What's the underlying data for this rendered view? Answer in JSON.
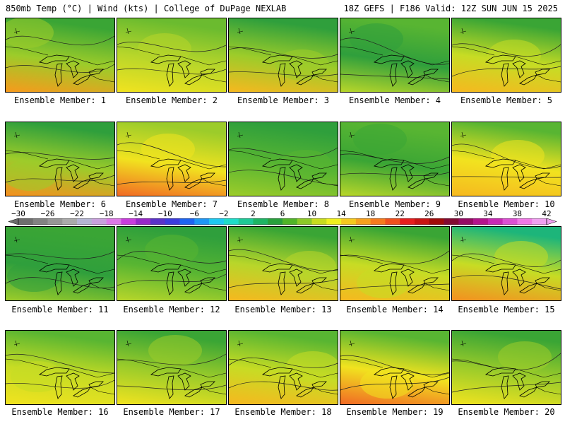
{
  "header": {
    "left": "850mb Temp (°C) | Wind (kts) | College of DuPage NEXLAB",
    "right": "18Z GEFS | F186 Valid: 12Z SUN JUN 15 2025"
  },
  "panels": [
    {
      "label": "Ensemble Member: 1",
      "top": "#3aa535",
      "mid": "#9ccc2a",
      "bottom": "#f79a1c"
    },
    {
      "label": "Ensemble Member: 2",
      "top": "#6bbb2f",
      "mid": "#b8d62a",
      "bottom": "#f1e31f"
    },
    {
      "label": "Ensemble Member: 3",
      "top": "#2f9f3c",
      "mid": "#9ccc2a",
      "bottom": "#f6b81f"
    },
    {
      "label": "Ensemble Member: 4",
      "top": "#58b532",
      "mid": "#2f9f3c",
      "bottom": "#b8d62a"
    },
    {
      "label": "Ensemble Member: 5",
      "top": "#3aa535",
      "mid": "#c7dc24",
      "bottom": "#f6b81f"
    },
    {
      "label": "Ensemble Member: 6",
      "top": "#2f9f3c",
      "mid": "#9ccc2a",
      "bottom": "#f49020"
    },
    {
      "label": "Ensemble Member: 7",
      "top": "#9ccc2a",
      "mid": "#f1e31f",
      "bottom": "#f16a24"
    },
    {
      "label": "Ensemble Member: 8",
      "top": "#2f9f3c",
      "mid": "#58b532",
      "bottom": "#9ccc2a"
    },
    {
      "label": "Ensemble Member: 9",
      "top": "#58b532",
      "mid": "#3aa535",
      "bottom": "#b8d62a"
    },
    {
      "label": "Ensemble Member: 10",
      "top": "#58b532",
      "mid": "#f1e31f",
      "bottom": "#f6b81f"
    },
    {
      "label": "Ensemble Member: 11",
      "top": "#3aa535",
      "mid": "#2f9f3c",
      "bottom": "#9ccc2a"
    },
    {
      "label": "Ensemble Member: 12",
      "top": "#2f9f3c",
      "mid": "#58b532",
      "bottom": "#b8d62a"
    },
    {
      "label": "Ensemble Member: 13",
      "top": "#3aa535",
      "mid": "#b8d62a",
      "bottom": "#f6b81f"
    },
    {
      "label": "Ensemble Member: 14",
      "top": "#3aa535",
      "mid": "#c7dc24",
      "bottom": "#f6b81f"
    },
    {
      "label": "Ensemble Member: 15",
      "top": "#1db57a",
      "mid": "#c7dc24",
      "bottom": "#f49020"
    },
    {
      "label": "Ensemble Member: 16",
      "top": "#58b532",
      "mid": "#c7dc24",
      "bottom": "#f1e31f"
    },
    {
      "label": "Ensemble Member: 17",
      "top": "#3aa535",
      "mid": "#9ccc2a",
      "bottom": "#f1e31f"
    },
    {
      "label": "Ensemble Member: 18",
      "top": "#58b532",
      "mid": "#c7dc24",
      "bottom": "#f6b81f"
    },
    {
      "label": "Ensemble Member: 19",
      "top": "#58b532",
      "mid": "#f1e31f",
      "bottom": "#f16a24"
    },
    {
      "label": "Ensemble Member: 20",
      "top": "#3aa535",
      "mid": "#9ccc2a",
      "bottom": "#f1e31f"
    }
  ],
  "colorbar": {
    "ticks": [
      "−30",
      "−26",
      "−22",
      "−18",
      "−14",
      "−10",
      "−6",
      "−2",
      "2",
      "6",
      "10",
      "14",
      "18",
      "22",
      "26",
      "30",
      "34",
      "38",
      "42"
    ],
    "colors": [
      "#6e6e6e",
      "#828282",
      "#969696",
      "#aaaaaa",
      "#b4b4d2",
      "#c8a0dc",
      "#dc78e6",
      "#c83cdc",
      "#9628c8",
      "#5a32c8",
      "#3c3cdc",
      "#1e64f0",
      "#1e96f5",
      "#1ec8f0",
      "#1edcc8",
      "#1ec896",
      "#1eb464",
      "#28a03c",
      "#50b428",
      "#8cc828",
      "#c8dc1e",
      "#f0f01e",
      "#f5c81e",
      "#f5a01e",
      "#f57a1e",
      "#f0501e",
      "#e61e1e",
      "#c81414",
      "#a00a0a",
      "#820a32",
      "#960a64",
      "#b4148c",
      "#c828b4",
      "#dc50d2",
      "#f078e6",
      "#f0a0f0"
    ]
  }
}
